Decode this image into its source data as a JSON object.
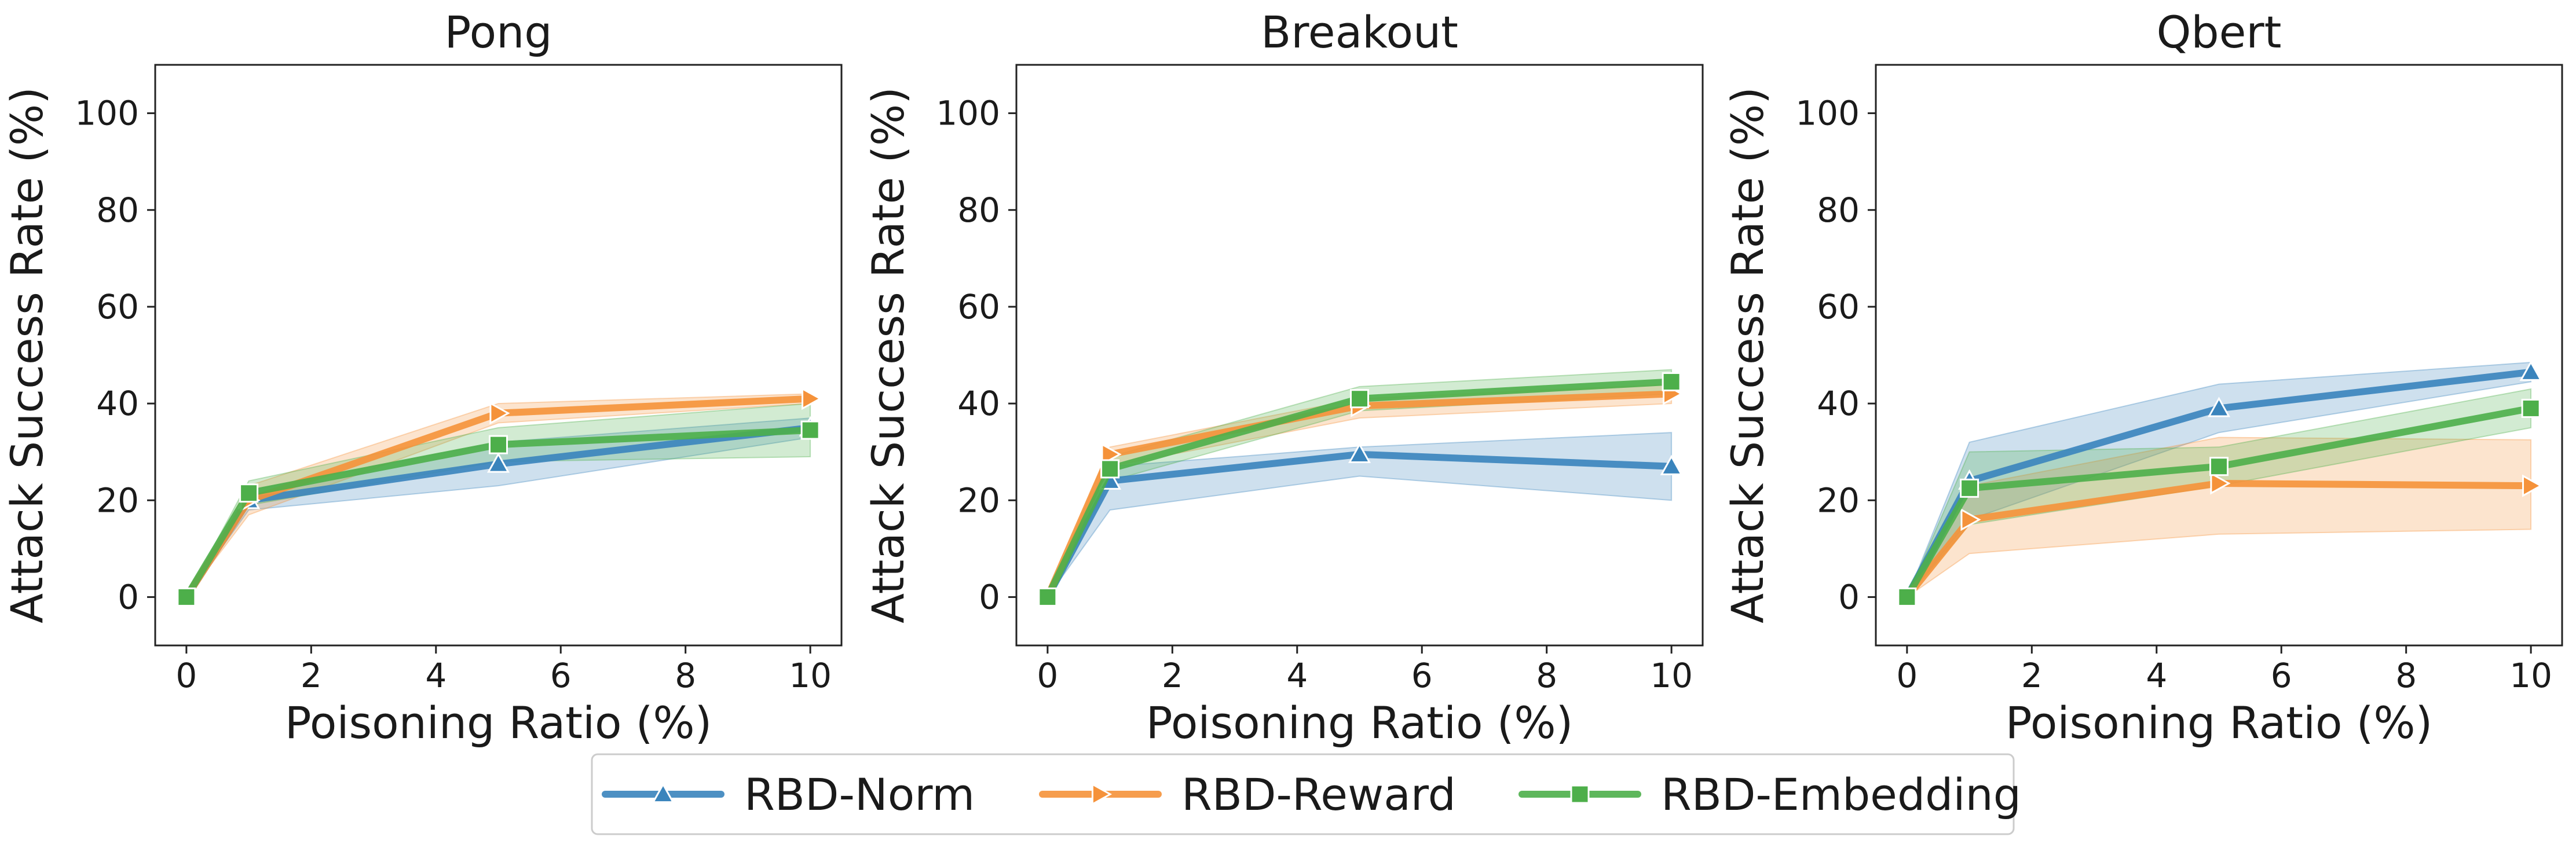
{
  "chart_data": [
    {
      "type": "line",
      "title": "Pong",
      "xlabel": "Poisoning Ratio (%)",
      "ylabel": "Attack Success Rate (%)",
      "xlim": [
        -0.5,
        10.5
      ],
      "ylim": [
        -10,
        110
      ],
      "xticks": [
        0,
        2,
        4,
        6,
        8,
        10
      ],
      "yticks": [
        0,
        20,
        40,
        60,
        80,
        100
      ],
      "x": [
        0,
        1,
        5,
        10
      ],
      "series": [
        {
          "name": "RBD-Norm",
          "values": [
            0,
            20,
            27.5,
            35
          ],
          "lower": [
            0,
            18,
            23,
            33
          ],
          "upper": [
            0,
            22,
            32,
            37
          ]
        },
        {
          "name": "RBD-Reward",
          "values": [
            0,
            20,
            38,
            41
          ],
          "lower": [
            0,
            17,
            36,
            40
          ],
          "upper": [
            0,
            23,
            40,
            42
          ]
        },
        {
          "name": "RBD-Embedding",
          "values": [
            0,
            21.5,
            31.5,
            34.5
          ],
          "lower": [
            0,
            19,
            28,
            29
          ],
          "upper": [
            0,
            24,
            35,
            40
          ]
        }
      ]
    },
    {
      "type": "line",
      "title": "Breakout",
      "xlabel": "Poisoning Ratio (%)",
      "ylabel": "Attack Success Rate (%)",
      "xlim": [
        -0.5,
        10.5
      ],
      "ylim": [
        -10,
        110
      ],
      "xticks": [
        0,
        2,
        4,
        6,
        8,
        10
      ],
      "yticks": [
        0,
        20,
        40,
        60,
        80,
        100
      ],
      "x": [
        0,
        1,
        5,
        10
      ],
      "series": [
        {
          "name": "RBD-Norm",
          "values": [
            0,
            24,
            29.5,
            27
          ],
          "lower": [
            0,
            18,
            25,
            20
          ],
          "upper": [
            0,
            27,
            31,
            34
          ]
        },
        {
          "name": "RBD-Reward",
          "values": [
            0,
            29.5,
            39.5,
            42
          ],
          "lower": [
            0,
            27,
            37,
            40
          ],
          "upper": [
            0,
            31,
            41,
            44
          ]
        },
        {
          "name": "RBD-Embedding",
          "values": [
            0,
            26.5,
            41,
            44.5
          ],
          "lower": [
            0,
            24,
            38.5,
            42
          ],
          "upper": [
            0,
            29,
            43.5,
            47
          ]
        }
      ]
    },
    {
      "type": "line",
      "title": "Qbert",
      "xlabel": "Poisoning Ratio (%)",
      "ylabel": "Attack Success Rate (%)",
      "xlim": [
        -0.5,
        10.5
      ],
      "ylim": [
        -10,
        110
      ],
      "xticks": [
        0,
        2,
        4,
        6,
        8,
        10
      ],
      "yticks": [
        0,
        20,
        40,
        60,
        80,
        100
      ],
      "x": [
        0,
        1,
        5,
        10
      ],
      "series": [
        {
          "name": "RBD-Norm",
          "values": [
            0,
            24,
            39,
            46.5
          ],
          "lower": [
            0,
            16,
            34,
            44.5
          ],
          "upper": [
            0,
            32,
            44,
            48.5
          ]
        },
        {
          "name": "RBD-Reward",
          "values": [
            0,
            16,
            23.5,
            23
          ],
          "lower": [
            0,
            9,
            13,
            14
          ],
          "upper": [
            0,
            23,
            33,
            32.5
          ]
        },
        {
          "name": "RBD-Embedding",
          "values": [
            0,
            22.5,
            27,
            39
          ],
          "lower": [
            0,
            15,
            23,
            35
          ],
          "upper": [
            0,
            30,
            31,
            43
          ]
        }
      ]
    }
  ],
  "legend": {
    "items": [
      {
        "name": "RBD-Norm",
        "marker": "triangle"
      },
      {
        "name": "RBD-Reward",
        "marker": "triangle-right"
      },
      {
        "name": "RBD-Embedding",
        "marker": "square"
      }
    ]
  },
  "colors": {
    "RBD-Norm": "#3a84bc",
    "RBD-Reward": "#f5923a",
    "RBD-Embedding": "#4daf4a",
    "RBD-Norm-band": "#cfe0ef",
    "RBD-Reward-band": "#fcdcc0",
    "RBD-Embedding-band": "#c6e8c4"
  }
}
